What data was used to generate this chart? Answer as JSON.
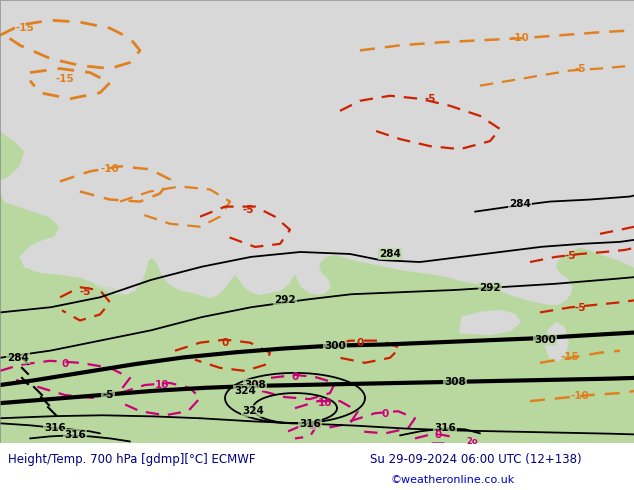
{
  "title_left": "Height/Temp. 700 hPa [gdmp][°C] ECMWF",
  "title_right": "Su 29-09-2024 06:00 UTC (12+138)",
  "credit": "©weatheronline.co.uk",
  "bg_color": "#c8c8c8",
  "land_color": "#b8d8a0",
  "sea_color": "#d8d8d8",
  "bottom_bar_color": "#ffffff",
  "title_color": "#000080",
  "credit_color": "#0000cc",
  "figsize": [
    6.34,
    4.9
  ],
  "dpi": 100
}
